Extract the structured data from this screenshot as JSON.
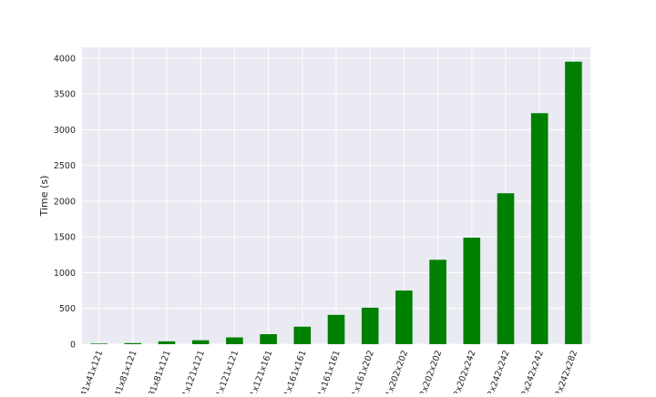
{
  "chart_data": {
    "type": "bar",
    "title": "",
    "xlabel": "",
    "ylabel": "Time (s)",
    "ylim": [
      0,
      4150
    ],
    "yticks": [
      0,
      500,
      1000,
      1500,
      2000,
      2500,
      3000,
      3500,
      4000
    ],
    "grid": true,
    "legend": "none",
    "categories": [
      "41x41x121",
      "41x81x121",
      "81x81x121",
      "81x121x121",
      "121x121x121",
      "121x121x161",
      "121x161x161",
      "161x161x161",
      "161x161x202",
      "161x202x202",
      "202x202x202",
      "202x202x242",
      "202x242x242",
      "242x242x242",
      "242x242x282"
    ],
    "values": [
      8,
      15,
      40,
      55,
      95,
      140,
      245,
      410,
      510,
      750,
      1180,
      1490,
      2110,
      3230,
      3950
    ],
    "colors": {
      "bar": "#008000",
      "plot_background": "#eaeaf2",
      "grid": "#ffffff",
      "text": "#262626"
    }
  }
}
